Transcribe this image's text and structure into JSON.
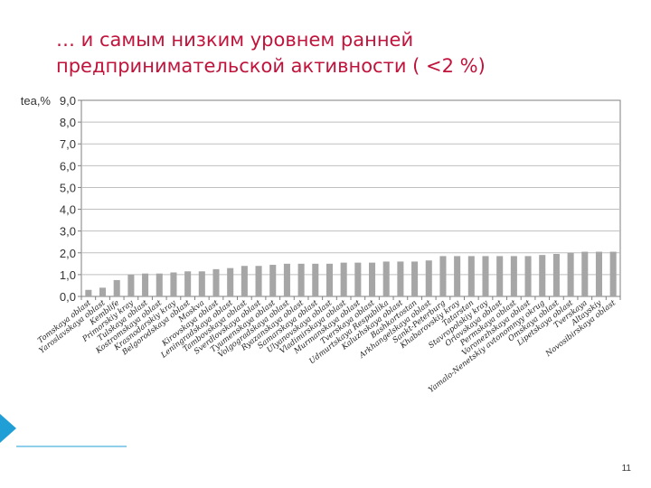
{
  "slide": {
    "title_line1": "… и самым низким уровнем ранней",
    "title_line2": "предпринимательской активности ( <2 %)",
    "page_number": "11"
  },
  "colors": {
    "title": "#c0143c",
    "bar": "#a6a6a6",
    "grid": "#bfbfbf",
    "plot_border": "#7f7f7f",
    "footer_accent": "#1f9fd6"
  },
  "chart_data": {
    "type": "bar",
    "ylabel": "tea,%",
    "ylim": [
      0,
      9
    ],
    "yticks": [
      "0,0",
      "1,0",
      "2,0",
      "3,0",
      "4,0",
      "5,0",
      "6,0",
      "7,0",
      "8,0",
      "9,0"
    ],
    "grid": true,
    "legend": "none",
    "categories": [
      "Tomskaya oblast",
      "Yaroslavskaya oblast",
      "Kemblife",
      "Primorskiy kray",
      "Tulskaya oblast",
      "Kostromskaya oblast",
      "Krasnodarskiy kray",
      "Belgorodskaya oblast",
      "Moskva",
      "Kirovskaya oblast",
      "Leningradskaya oblast",
      "Tambovskaya oblast",
      "Sverdlovskaya oblast",
      "Tyumenskaya oblast",
      "Volgogradskaya oblast",
      "Ryazanskaya oblast",
      "Samarskaya oblast",
      "Ulyanovskaya oblast",
      "Vladimirskaya oblast",
      "Murmanskaya oblast",
      "Tverskaya oblast",
      "Udmurtskaya Respublika",
      "Kaluzhskaya oblast",
      "Bashkortostan",
      "Arkhangelskaya oblast",
      "Sankt-Peterburg",
      "Khabarovskiy kray",
      "Tatarstan",
      "Stavropolskiy kray",
      "Orlovskaya oblast",
      "Permskaya oblast",
      "Voronezhskaya oblast",
      "Yamalo-Nenetskiy avtonomnyy okrug",
      "Omskaya oblast",
      "Lipetskaya oblast",
      "Tverskaya",
      "Altayskiy",
      "Novosibirskaya oblast"
    ],
    "values": [
      0.3,
      0.4,
      0.75,
      1.0,
      1.05,
      1.05,
      1.1,
      1.15,
      1.15,
      1.25,
      1.3,
      1.4,
      1.4,
      1.45,
      1.5,
      1.5,
      1.5,
      1.5,
      1.55,
      1.55,
      1.55,
      1.6,
      1.6,
      1.6,
      1.65,
      1.85,
      1.85,
      1.85,
      1.85,
      1.85,
      1.85,
      1.85,
      1.9,
      1.95,
      2.0,
      2.05,
      2.05,
      2.05
    ]
  }
}
